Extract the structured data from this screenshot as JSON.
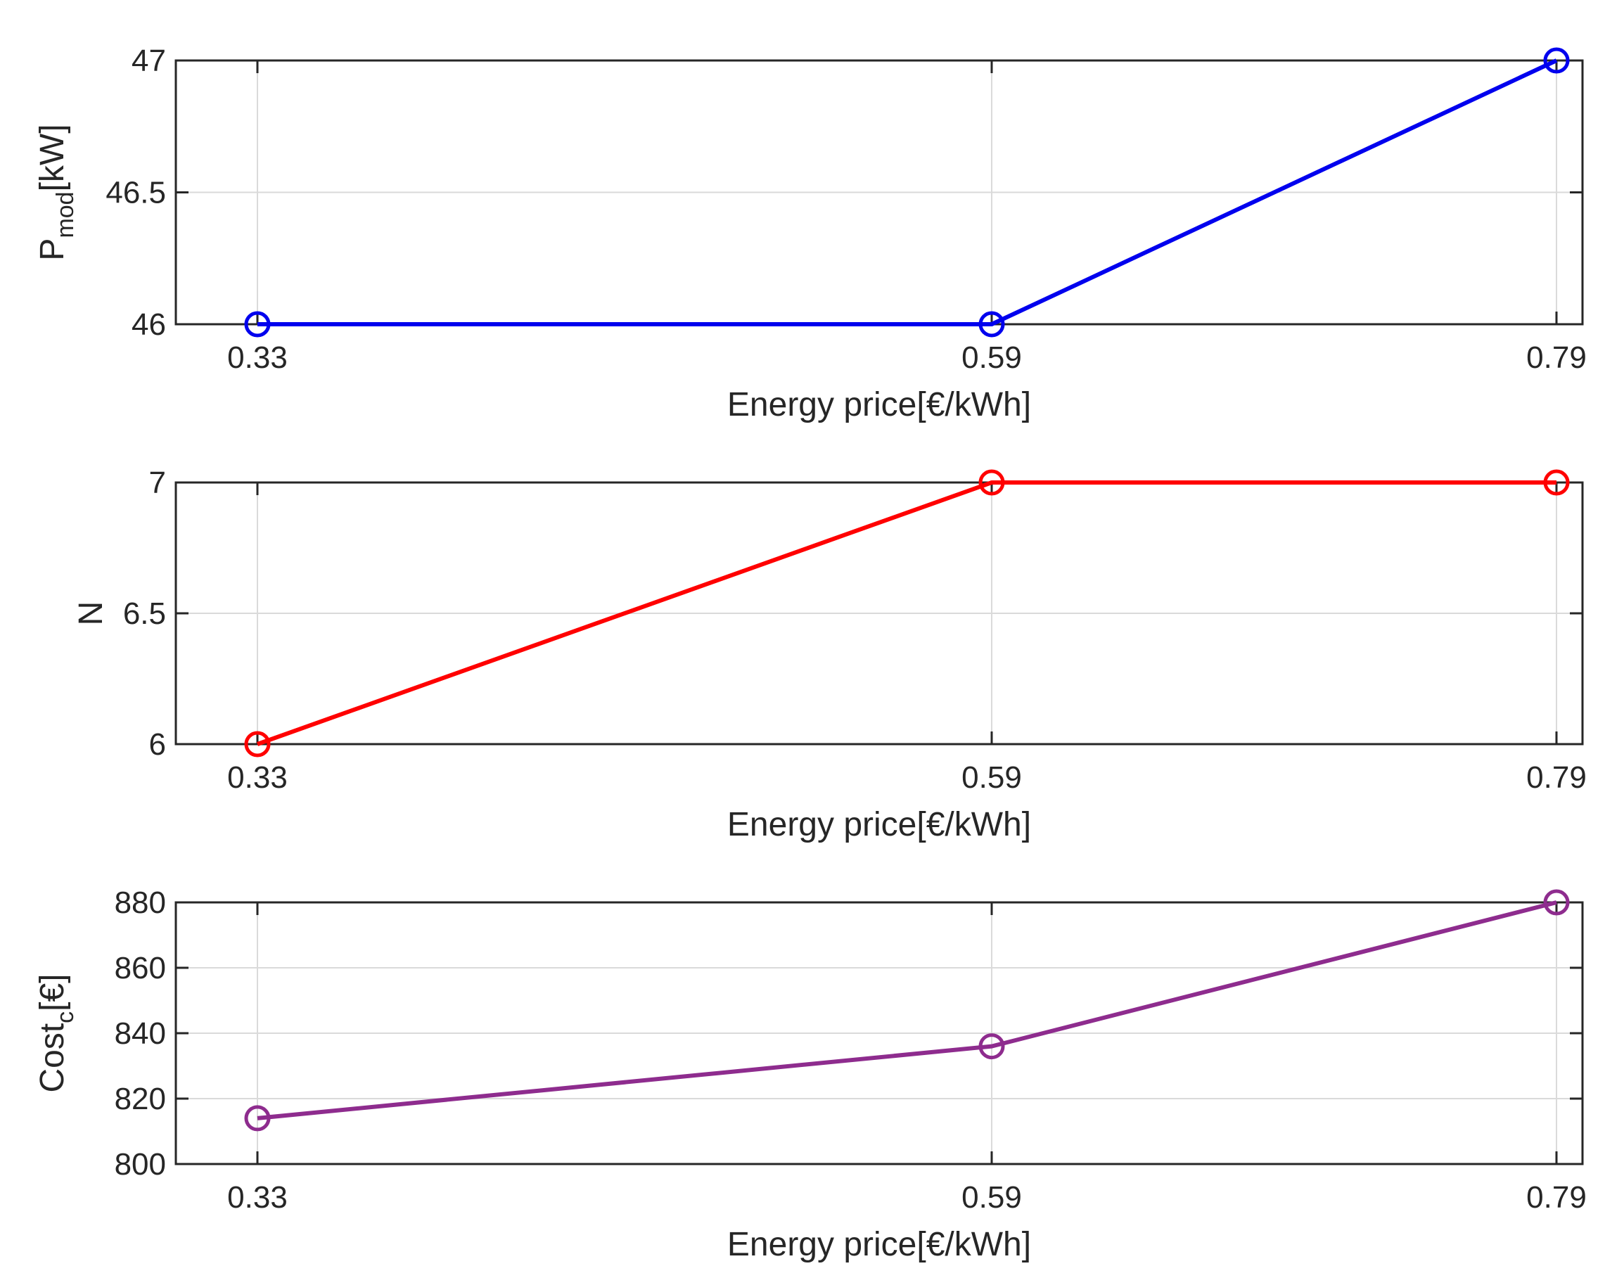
{
  "chart_data": [
    {
      "type": "line",
      "x": [
        0.33,
        0.59,
        0.79
      ],
      "x_tick_labels": [
        "0.33",
        "0.59",
        "0.79"
      ],
      "values": [
        46,
        46,
        47
      ],
      "y_ticks": [
        46,
        46.5,
        47
      ],
      "y_tick_labels": [
        "46",
        "46.5",
        "47"
      ],
      "ylim": [
        46,
        47
      ],
      "xlabel": "Energy price[€/kWh]",
      "ylabel_main": "P",
      "ylabel_sub": "mod",
      "ylabel_unit": "[kW]",
      "color": "#0000ee",
      "marker": "circle",
      "grid": true
    },
    {
      "type": "line",
      "x": [
        0.33,
        0.59,
        0.79
      ],
      "x_tick_labels": [
        "0.33",
        "0.59",
        "0.79"
      ],
      "values": [
        6,
        7,
        7
      ],
      "y_ticks": [
        6,
        6.5,
        7
      ],
      "y_tick_labels": [
        "6",
        "6.5",
        "7"
      ],
      "ylim": [
        6,
        7
      ],
      "xlabel": "Energy price[€/kWh]",
      "ylabel_main": "N",
      "ylabel_sub": "",
      "ylabel_unit": "",
      "color": "#ff0000",
      "marker": "circle",
      "grid": true
    },
    {
      "type": "line",
      "x": [
        0.33,
        0.59,
        0.79
      ],
      "x_tick_labels": [
        "0.33",
        "0.59",
        "0.79"
      ],
      "values": [
        814,
        836,
        880
      ],
      "y_ticks": [
        800,
        820,
        840,
        860,
        880
      ],
      "y_tick_labels": [
        "800",
        "820",
        "840",
        "860",
        "880"
      ],
      "ylim": [
        800,
        880
      ],
      "xlabel": "Energy price[€/kWh]",
      "ylabel_main": "Cost",
      "ylabel_sub": "c",
      "ylabel_unit": "[€]",
      "color": "#8e2c8e",
      "marker": "circle",
      "grid": true
    }
  ]
}
